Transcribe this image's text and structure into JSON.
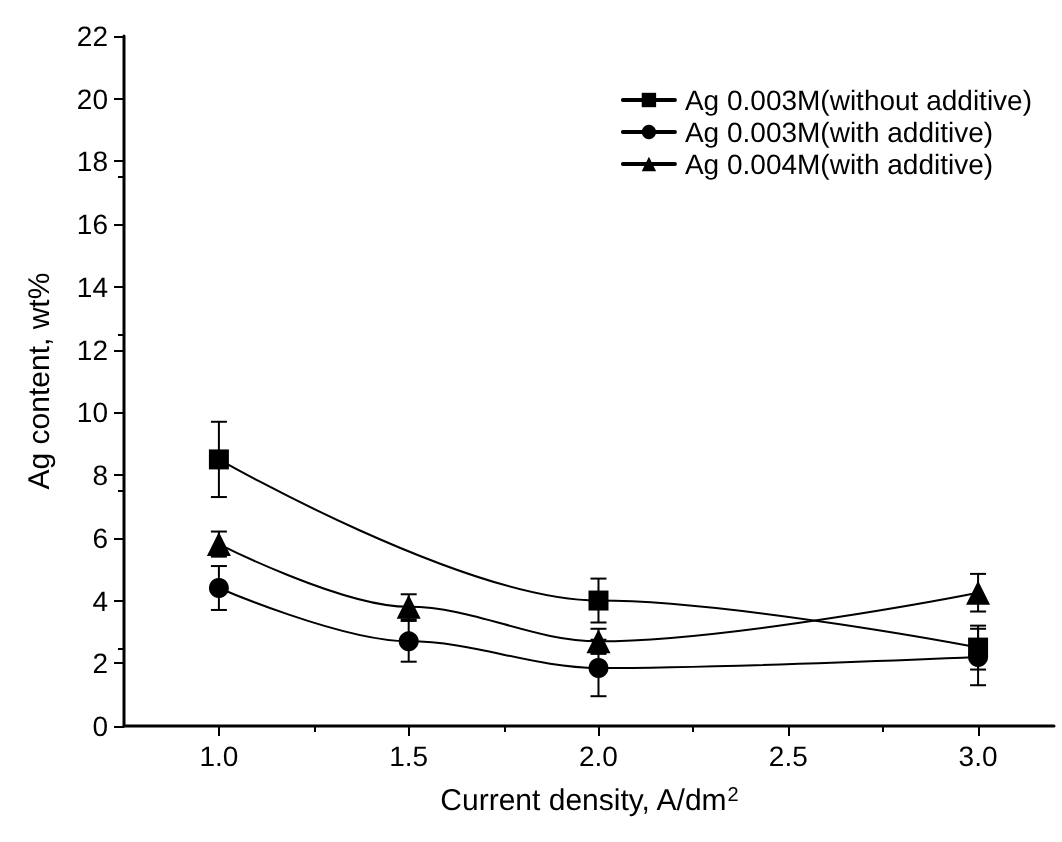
{
  "chart_data": {
    "type": "line",
    "xlabel": "Current density, A/dm$^{2}$",
    "ylabel": "Ag content, wt%",
    "xlim": [
      0.75,
      3.2
    ],
    "xticks": [
      {
        "value": 1,
        "label": "1.0"
      },
      {
        "value": 1.5,
        "label": "1.5"
      },
      {
        "value": 2,
        "label": "2.0"
      },
      {
        "value": 2.5,
        "label": "2.5"
      },
      {
        "value": 3,
        "label": "3.0"
      }
    ],
    "ylim": [
      0,
      22
    ],
    "yticks": [
      0,
      2,
      4,
      6,
      8,
      10,
      12,
      14,
      16,
      18,
      20,
      22
    ],
    "grid": false,
    "legend": "top right",
    "line_style": "solid",
    "series": [
      {
        "name": "Ag 0.003M(without additive)",
        "color": "#000000",
        "marker": "square",
        "x": [
          1,
          2,
          3
        ],
        "values": [
          8.5,
          4.0,
          2.5
        ],
        "errors": [
          1.2,
          0.7,
          0.7
        ]
      },
      {
        "name": "Ag 0.003M(with additive)",
        "color": "#000000",
        "marker": "circle",
        "x": [
          1,
          1.5,
          2,
          3
        ],
        "values": [
          4.4,
          2.7,
          1.85,
          2.2
        ],
        "errors": [
          0.7,
          0.65,
          0.9,
          0.9
        ]
      },
      {
        "name": "Ag 0.004M(with additive)",
        "color": "#000000",
        "marker": "triangle",
        "x": [
          1,
          1.5,
          2,
          3
        ],
        "values": [
          5.8,
          3.8,
          2.7,
          4.25
        ],
        "errors": [
          0.4,
          0.4,
          0.4,
          0.6
        ]
      }
    ]
  }
}
